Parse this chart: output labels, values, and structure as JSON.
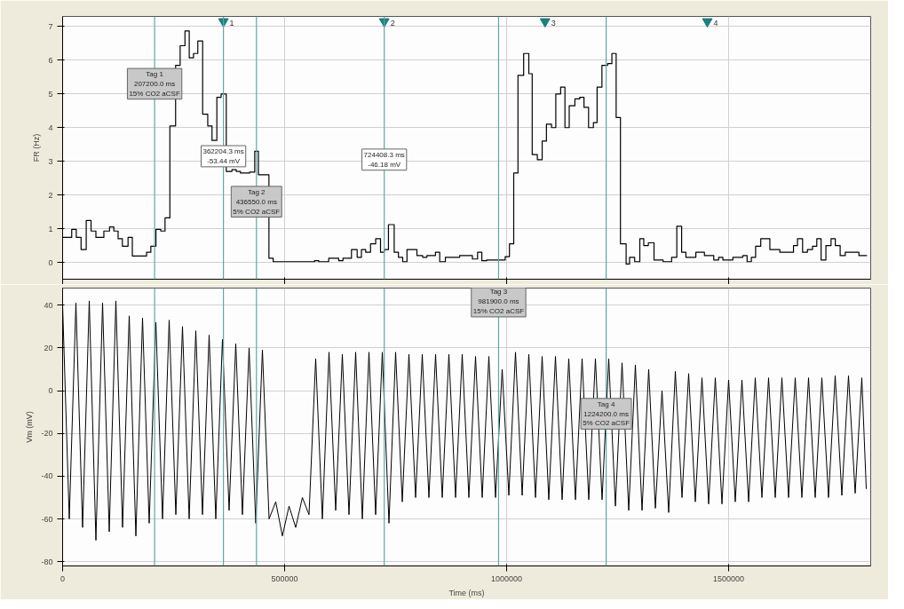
{
  "chart_data": [
    {
      "type": "step",
      "ylabel": "FR (Hz)",
      "xlim": [
        0,
        1820000
      ],
      "ylim": [
        -0.5,
        7.3
      ],
      "xticks": [
        0,
        500000,
        1000000,
        1500000
      ],
      "yticks": [
        0,
        1,
        2,
        3,
        4,
        5,
        6,
        7
      ],
      "grid": true,
      "tick_labels": "y",
      "series": [
        {
          "color": "#000000",
          "x": [
            0,
            20500,
            30800,
            41600,
            53200,
            64100,
            75000,
            92900,
            105700,
            115400,
            125000,
            134600,
            147400,
            157000,
            189100,
            198700,
            210200,
            221100,
            230700,
            241600,
            254500,
            264700,
            275600,
            285200,
            294800,
            304500,
            315400,
            326900,
            336500,
            347400,
            357000,
            368600,
            381400,
            391000,
            400600,
            421100,
            432700,
            441000,
            464700,
            474300,
            567300,
            576900,
            599300,
            621800,
            631400,
            650600,
            663400,
            673000,
            682600,
            693500,
            705100,
            716000,
            724300,
            733900,
            746800,
            756400,
            766000,
            775600,
            798000,
            810900,
            820500,
            839700,
            849300,
            862100,
            894200,
            923000,
            934600,
            944200,
            955100,
            996800,
            1006400,
            1016000,
            1025600,
            1038400,
            1050000,
            1057600,
            1069200,
            1080100,
            1089700,
            1101200,
            1110800,
            1121700,
            1131400,
            1141000,
            1153800,
            1164700,
            1174300,
            1184600,
            1195500,
            1203800,
            1214700,
            1227500,
            1237100,
            1246700,
            1256400,
            1269200,
            1276900,
            1288400,
            1300000,
            1308900,
            1319200,
            1332000,
            1352500,
            1371700,
            1383300,
            1394200,
            1403800,
            1426200,
            1445500,
            1466600,
            1477500,
            1487100,
            1509500,
            1532000,
            1541600,
            1551200,
            1560800,
            1572400,
            1592900,
            1615300,
            1646100,
            1655100,
            1666600,
            1677500,
            1689000,
            1698600,
            1708300,
            1719100,
            1730700,
            1740300,
            1751200,
            1762700,
            1793500,
            1810800
          ],
          "values": [
            0.74,
            0.98,
            0.74,
            0.38,
            1.24,
            0.93,
            0.74,
            0.93,
            1.05,
            0.93,
            0.7,
            0.48,
            0.74,
            0.19,
            0.3,
            0.48,
            0.98,
            0.93,
            1.32,
            4.05,
            5.85,
            6.43,
            6.87,
            6.07,
            6.2,
            6.57,
            4.4,
            4.05,
            3.62,
            4.9,
            5.0,
            2.7,
            2.75,
            2.7,
            2.65,
            2.68,
            3.3,
            2.6,
            0.12,
            0.02,
            0.05,
            0.02,
            0.12,
            0.05,
            0.12,
            0.38,
            0.15,
            0.38,
            0.3,
            0.55,
            0.7,
            0.3,
            0.38,
            1.12,
            0.3,
            0.15,
            0.02,
            0.38,
            0.2,
            0.15,
            0.2,
            0.3,
            0.02,
            0.15,
            0.2,
            0.1,
            0.3,
            0.05,
            0.07,
            0.17,
            0.55,
            2.65,
            5.55,
            6.2,
            5.6,
            3.2,
            3.05,
            3.6,
            4.1,
            4.0,
            5.0,
            5.2,
            4.0,
            4.65,
            4.85,
            4.9,
            4.6,
            4.0,
            4.15,
            5.2,
            5.85,
            5.9,
            6.2,
            4.3,
            0.55,
            -0.05,
            0.15,
            0.02,
            0.7,
            0.5,
            0.58,
            0.07,
            0.02,
            0.15,
            1.07,
            0.3,
            0.15,
            0.3,
            0.2,
            0.07,
            0.15,
            0.07,
            0.15,
            0.2,
            0.02,
            0.15,
            0.48,
            0.7,
            0.38,
            0.3,
            0.5,
            0.7,
            0.3,
            0.38,
            0.48,
            0.7,
            0.07,
            0.5,
            0.7,
            0.5,
            0.2,
            0.3,
            0.2,
            0.2
          ]
        }
      ],
      "ref_lines": [
        {
          "axis": "x",
          "value": 207200,
          "color": "#5fa8a8"
        },
        {
          "axis": "x",
          "value": 362204.3,
          "color": "#5fa8a8"
        },
        {
          "axis": "x",
          "value": 436550,
          "color": "#5fa8a8"
        },
        {
          "axis": "x",
          "value": 724408.3,
          "color": "#5fa8a8"
        },
        {
          "axis": "x",
          "value": 981900,
          "color": "#5fa8a8"
        },
        {
          "axis": "x",
          "value": 1224200,
          "color": "#5fa8a8"
        }
      ],
      "annotations": [
        {
          "text": "Tag 1\n207200.0 ms\n15% CO2 aCSF",
          "x": 207200,
          "y": 5.3
        },
        {
          "text": "362204.3 ms\n-53.44 mV",
          "x": 362204.3,
          "y": 3.15
        },
        {
          "text": "Tag 2\n436550.0 ms\n5% CO2 aCSF",
          "x": 436550,
          "y": 1.8
        },
        {
          "text": "724408.3 ms\n-46.18 mV",
          "x": 724408.3,
          "y": 3.05
        },
        {
          "text": "1",
          "x": 362204.3,
          "y": 7.15
        },
        {
          "text": "2",
          "x": 724408.3,
          "y": 7.15
        },
        {
          "text": "3",
          "x": 1086500,
          "y": 7.15
        },
        {
          "text": "4",
          "x": 1452000,
          "y": 7.15
        }
      ]
    },
    {
      "type": "line",
      "ylabel": "Vm (mV)",
      "xlabel": "Time (ms)",
      "xlim": [
        0,
        1820000
      ],
      "ylim": [
        -82,
        48
      ],
      "xticks": [
        0,
        500000,
        1000000,
        1500000
      ],
      "yticks": [
        -80,
        -60,
        -40,
        -20,
        0,
        20,
        40
      ],
      "grid": true,
      "series": [
        {
          "color": "#000000",
          "x": [
            0,
            15000,
            30000,
            45000,
            60000,
            75000,
            90000,
            105000,
            120000,
            135000,
            150000,
            165000,
            180000,
            195000,
            210000,
            225000,
            240000,
            255000,
            270000,
            285000,
            300000,
            315000,
            330000,
            345000,
            360000,
            375000,
            390000,
            405000,
            420000,
            435000,
            450000,
            465000,
            480000,
            495000,
            510000,
            525000,
            540000,
            555000,
            570000,
            585000,
            600000,
            615000,
            630000,
            645000,
            660000,
            675000,
            690000,
            705000,
            720000,
            735000,
            750000,
            765000,
            780000,
            795000,
            810000,
            825000,
            840000,
            855000,
            870000,
            885000,
            900000,
            915000,
            930000,
            945000,
            960000,
            975000,
            990000,
            1005000,
            1020000,
            1035000,
            1050000,
            1065000,
            1080000,
            1095000,
            1110000,
            1125000,
            1140000,
            1155000,
            1170000,
            1185000,
            1200000,
            1215000,
            1230000,
            1245000,
            1260000,
            1275000,
            1290000,
            1305000,
            1320000,
            1335000,
            1350000,
            1365000,
            1380000,
            1395000,
            1410000,
            1425000,
            1440000,
            1455000,
            1470000,
            1485000,
            1500000,
            1515000,
            1530000,
            1545000,
            1560000,
            1575000,
            1590000,
            1605000,
            1620000,
            1635000,
            1650000,
            1665000,
            1680000,
            1695000,
            1710000,
            1725000,
            1740000,
            1755000,
            1770000,
            1785000,
            1800000,
            1810000
          ],
          "values": [
            40,
            -60,
            41,
            -64,
            42,
            -70,
            41,
            -66,
            42,
            -64,
            35,
            -68,
            34,
            -62,
            32,
            -60,
            33,
            -58,
            30,
            -60,
            28,
            -58,
            26,
            -60,
            24,
            -56,
            22,
            -58,
            20,
            -62,
            19,
            -60,
            -52,
            -68,
            -54,
            -64,
            -50,
            -58,
            15,
            -60,
            18,
            -56,
            17,
            -58,
            18,
            -60,
            18,
            -58,
            18,
            -62,
            18,
            -52,
            17,
            -50,
            17,
            -50,
            17,
            -50,
            17,
            -50,
            17,
            -50,
            16,
            -50,
            16,
            -50,
            10,
            -49,
            18,
            -49,
            17,
            -50,
            16,
            -51,
            16,
            -51,
            15,
            -51,
            15,
            -51,
            15,
            -51,
            15,
            -54,
            13,
            -56,
            12,
            -56,
            10,
            -55,
            0,
            -57,
            9,
            -50,
            8,
            -52,
            6,
            -53,
            6,
            -53,
            5,
            -52,
            5,
            -52,
            6,
            -50,
            6,
            -50,
            6,
            -50,
            6,
            -50,
            6,
            -50,
            6,
            -50,
            7,
            -49,
            7,
            -48,
            6,
            -46
          ]
        }
      ],
      "ref_lines": [
        {
          "axis": "x",
          "value": 207200,
          "color": "#5fa8a8"
        },
        {
          "axis": "x",
          "value": 362204.3,
          "color": "#5fa8a8"
        },
        {
          "axis": "x",
          "value": 436550,
          "color": "#5fa8a8"
        },
        {
          "axis": "x",
          "value": 724408.3,
          "color": "#5fa8a8"
        },
        {
          "axis": "x",
          "value": 981900,
          "color": "#5fa8a8"
        },
        {
          "axis": "x",
          "value": 1224200,
          "color": "#5fa8a8"
        }
      ],
      "annotations": [
        {
          "text": "Tag 3\n981900.0 ms\n15% CO2 aCSF",
          "x": 981900,
          "y": 41.7
        },
        {
          "text": "Tag 4\n1224200.0 ms\n5% CO2 aCSF",
          "x": 1224200,
          "y": -10.8
        }
      ]
    }
  ]
}
